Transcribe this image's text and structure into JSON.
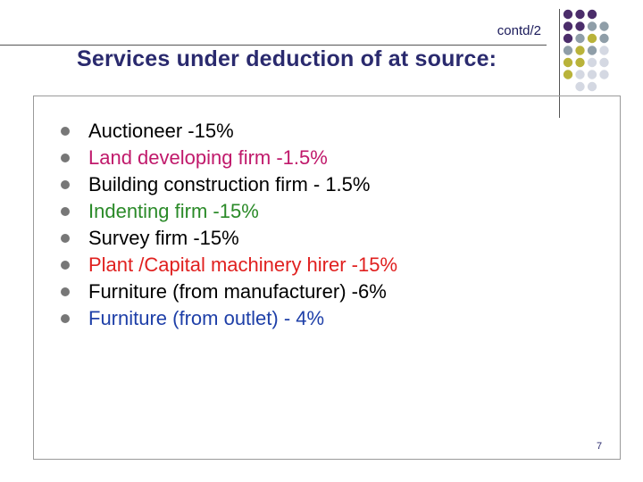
{
  "header": {
    "contd_label": "contd/2"
  },
  "title": "Services under deduction of at source:",
  "items": [
    {
      "text": "Auctioneer  -15%",
      "color": "#000000"
    },
    {
      "text": "Land developing firm -1.5%",
      "color": "#c0196b"
    },
    {
      "text": "Building construction firm - 1.5%",
      "color": "#000000"
    },
    {
      "text": "Indenting firm  -15%",
      "color": "#2a8a28"
    },
    {
      "text": "Survey firm  -15%",
      "color": "#000000"
    },
    {
      "text": "Plant /Capital machinery hirer   -15%",
      "color": "#e0201f"
    },
    {
      "text": "Furniture (from manufacturer)  -6%",
      "color": "#000000"
    },
    {
      "text": "Furniture (from outlet) - 4%",
      "color": "#1e3fa8"
    }
  ],
  "page_number": "7",
  "decoration": {
    "dot_colors": {
      "purple": "#4b2d6b",
      "gray": "#8f9ea8",
      "olive": "#b9b33a",
      "light": "#d4d8e2"
    }
  }
}
